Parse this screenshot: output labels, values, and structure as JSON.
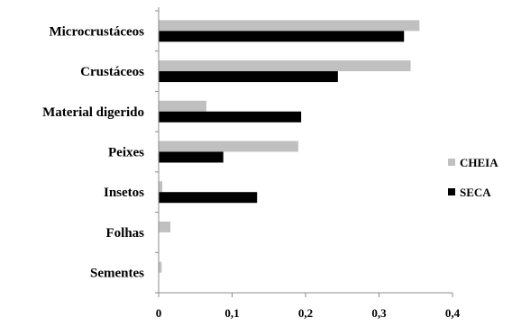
{
  "chart_data": {
    "type": "bar",
    "orientation": "horizontal",
    "categories": [
      "Microcrustáceos",
      "Crustáceos",
      "Material digerido",
      "Peixes",
      "Insetos",
      "Folhas",
      "Sementes"
    ],
    "series": [
      {
        "name": "CHEIA",
        "color": "#c0c0c0",
        "values": [
          0.355,
          0.343,
          0.065,
          0.19,
          0.005,
          0.016,
          0.004
        ]
      },
      {
        "name": "SECA",
        "color": "#000000",
        "values": [
          0.334,
          0.244,
          0.194,
          0.088,
          0.134,
          0,
          0
        ]
      }
    ],
    "x_ticks": [
      "0",
      "0,1",
      "0,2",
      "0,3",
      "0,4"
    ],
    "x_tick_values": [
      0,
      0.1,
      0.2,
      0.3,
      0.4
    ],
    "xlim": [
      0,
      0.4
    ],
    "legend_position": "right",
    "grid": false,
    "title": "",
    "xlabel": "",
    "ylabel": ""
  }
}
